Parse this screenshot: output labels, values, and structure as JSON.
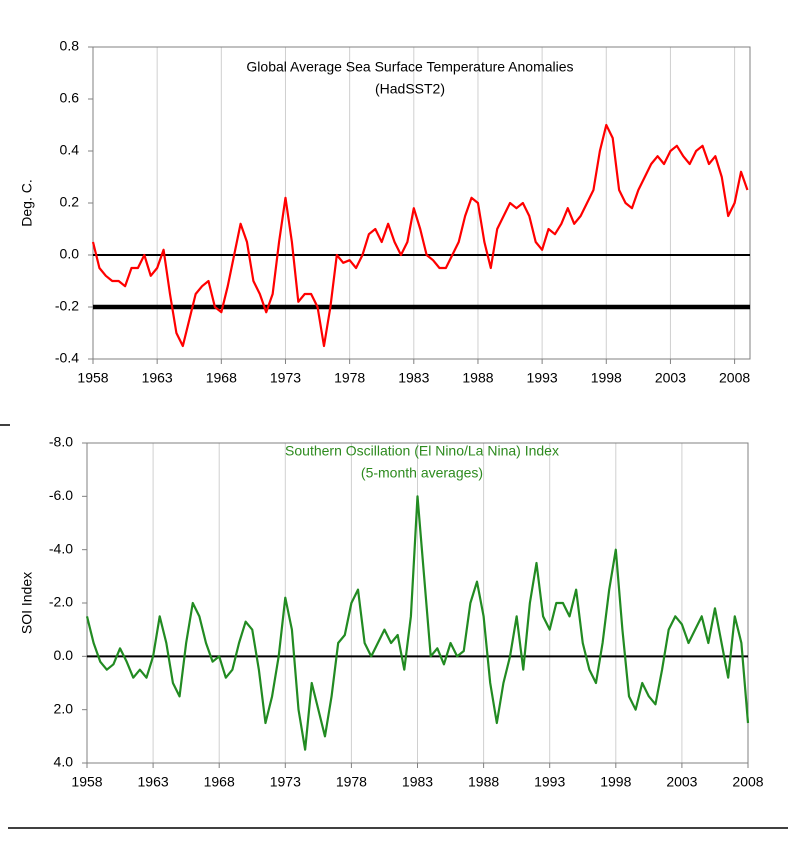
{
  "chart_data": [
    {
      "type": "line",
      "title": "Global Average Sea Surface Temperature  Anomalies",
      "subtitle": "(HadSST2)",
      "title_color": "#000000",
      "ylabel": "Deg. C.",
      "color": "#ff0000",
      "x": [
        1958,
        1958.5,
        1959,
        1959.5,
        1960,
        1960.5,
        1961,
        1961.5,
        1962,
        1962.5,
        1963,
        1963.5,
        1964,
        1964.5,
        1965,
        1965.5,
        1966,
        1966.5,
        1967,
        1967.5,
        1968,
        1968.5,
        1969,
        1969.5,
        1970,
        1970.5,
        1971,
        1971.5,
        1972,
        1972.5,
        1973,
        1973.5,
        1974,
        1974.5,
        1975,
        1975.5,
        1976,
        1976.5,
        1977,
        1977.5,
        1978,
        1978.5,
        1979,
        1979.5,
        1980,
        1980.5,
        1981,
        1981.5,
        1982,
        1982.5,
        1983,
        1983.5,
        1984,
        1984.5,
        1985,
        1985.5,
        1986,
        1986.5,
        1987,
        1987.5,
        1988,
        1988.5,
        1989,
        1989.5,
        1990,
        1990.5,
        1991,
        1991.5,
        1992,
        1992.5,
        1993,
        1993.5,
        1994,
        1994.5,
        1995,
        1995.5,
        1996,
        1996.5,
        1997,
        1997.5,
        1998,
        1998.5,
        1999,
        1999.5,
        2000,
        2000.5,
        2001,
        2001.5,
        2002,
        2002.5,
        2003,
        2003.5,
        2004,
        2004.5,
        2005,
        2005.5,
        2006,
        2006.5,
        2007,
        2007.5,
        2008,
        2008.5,
        2009
      ],
      "values": [
        0.05,
        -0.05,
        -0.08,
        -0.1,
        -0.1,
        -0.12,
        -0.05,
        -0.05,
        0.0,
        -0.08,
        -0.05,
        0.02,
        -0.15,
        -0.3,
        -0.35,
        -0.25,
        -0.15,
        -0.12,
        -0.1,
        -0.2,
        -0.22,
        -0.12,
        0.0,
        0.12,
        0.05,
        -0.1,
        -0.15,
        -0.22,
        -0.15,
        0.05,
        0.22,
        0.05,
        -0.18,
        -0.15,
        -0.15,
        -0.2,
        -0.35,
        -0.2,
        0.0,
        -0.03,
        -0.02,
        -0.05,
        0.0,
        0.08,
        0.1,
        0.05,
        0.12,
        0.05,
        0.0,
        0.05,
        0.18,
        0.1,
        0.0,
        -0.02,
        -0.05,
        -0.05,
        0.0,
        0.05,
        0.15,
        0.22,
        0.2,
        0.05,
        -0.05,
        0.1,
        0.15,
        0.2,
        0.18,
        0.2,
        0.15,
        0.05,
        0.02,
        0.1,
        0.08,
        0.12,
        0.18,
        0.12,
        0.15,
        0.2,
        0.25,
        0.4,
        0.5,
        0.45,
        0.25,
        0.2,
        0.18,
        0.25,
        0.3,
        0.35,
        0.38,
        0.35,
        0.4,
        0.42,
        0.38,
        0.35,
        0.4,
        0.42,
        0.35,
        0.38,
        0.3,
        0.15,
        0.2,
        0.32,
        0.25
      ],
      "xlim": [
        1958,
        2009.2
      ],
      "xticks": [
        1958,
        1963,
        1968,
        1973,
        1978,
        1983,
        1988,
        1993,
        1998,
        2003,
        2008
      ],
      "ylim": [
        -0.4,
        0.8
      ],
      "yticks": [
        -0.4,
        -0.2,
        {
          "value": 0,
          "label": "0.0"
        },
        0.2,
        0.4,
        0.6,
        0.8
      ],
      "hlines": [
        0,
        -0.2
      ],
      "grid": true,
      "y_inverted": false
    },
    {
      "type": "line",
      "title": "Southern Oscillation (El Nino/La Nina) Index",
      "subtitle": "(5-month averages)",
      "title_color": "#2e8b1f",
      "ylabel": "SOI Index",
      "color": "#228b22",
      "x": [
        1958,
        1958.5,
        1959,
        1959.5,
        1960,
        1960.5,
        1961,
        1961.5,
        1962,
        1962.5,
        1963,
        1963.5,
        1964,
        1964.5,
        1965,
        1965.5,
        1966,
        1966.5,
        1967,
        1967.5,
        1968,
        1968.5,
        1969,
        1969.5,
        1970,
        1970.5,
        1971,
        1971.5,
        1972,
        1972.5,
        1973,
        1973.5,
        1974,
        1974.5,
        1975,
        1975.5,
        1976,
        1976.5,
        1977,
        1977.5,
        1978,
        1978.5,
        1979,
        1979.5,
        1980,
        1980.5,
        1981,
        1981.5,
        1982,
        1982.5,
        1983,
        1983.5,
        1984,
        1984.5,
        1985,
        1985.5,
        1986,
        1986.5,
        1987,
        1987.5,
        1988,
        1988.5,
        1989,
        1989.5,
        1990,
        1990.5,
        1991,
        1991.5,
        1992,
        1992.5,
        1993,
        1993.5,
        1994,
        1994.5,
        1995,
        1995.5,
        1996,
        1996.5,
        1997,
        1997.5,
        1998,
        1998.5,
        1999,
        1999.5,
        2000,
        2000.5,
        2001,
        2001.5,
        2002,
        2002.5,
        2003,
        2003.5,
        2004,
        2004.5,
        2005,
        2005.5,
        2006,
        2006.5,
        2007,
        2007.5,
        2008
      ],
      "values": [
        -1.5,
        -0.5,
        0.2,
        0.5,
        0.3,
        -0.3,
        0.2,
        0.8,
        0.5,
        0.8,
        0.0,
        -1.5,
        -0.5,
        1.0,
        1.5,
        -0.5,
        -2.0,
        -1.5,
        -0.5,
        0.2,
        0.0,
        0.8,
        0.5,
        -0.5,
        -1.3,
        -1.0,
        0.5,
        2.5,
        1.5,
        0.0,
        -2.2,
        -1.0,
        2.0,
        3.5,
        1.0,
        2.0,
        3.0,
        1.5,
        -0.5,
        -0.8,
        -2.0,
        -2.5,
        -0.5,
        0.0,
        -0.5,
        -1.0,
        -0.5,
        -0.8,
        0.5,
        -1.5,
        -6.0,
        -3.0,
        0.0,
        -0.3,
        0.3,
        -0.5,
        0.0,
        -0.2,
        -2.0,
        -2.8,
        -1.5,
        1.0,
        2.5,
        1.0,
        0.0,
        -1.5,
        0.5,
        -2.0,
        -3.5,
        -1.5,
        -1.0,
        -2.0,
        -2.0,
        -1.5,
        -2.5,
        -0.5,
        0.5,
        1.0,
        -0.5,
        -2.5,
        -4.0,
        -1.0,
        1.5,
        2.0,
        1.0,
        1.5,
        1.8,
        0.5,
        -1.0,
        -1.5,
        -1.2,
        -0.5,
        -1.0,
        -1.5,
        -0.5,
        -1.8,
        -0.5,
        0.8,
        -1.5,
        -0.5,
        2.5
      ],
      "xlim": [
        1958,
        2008
      ],
      "xticks": [
        1958,
        1963,
        1968,
        1973,
        1978,
        1983,
        1988,
        1993,
        1998,
        2003,
        2008
      ],
      "ylim": [
        -8,
        4
      ],
      "yticks": [
        {
          "value": -8,
          "label": "-8.0"
        },
        {
          "value": -6,
          "label": "-6.0"
        },
        {
          "value": -4,
          "label": "-4.0"
        },
        {
          "value": -2,
          "label": "-2.0"
        },
        {
          "value": 0,
          "label": "0.0"
        },
        {
          "value": 2,
          "label": "2.0"
        },
        {
          "value": 4,
          "label": "4.0"
        }
      ],
      "hlines": [
        0
      ],
      "grid": true,
      "y_inverted": true
    }
  ]
}
